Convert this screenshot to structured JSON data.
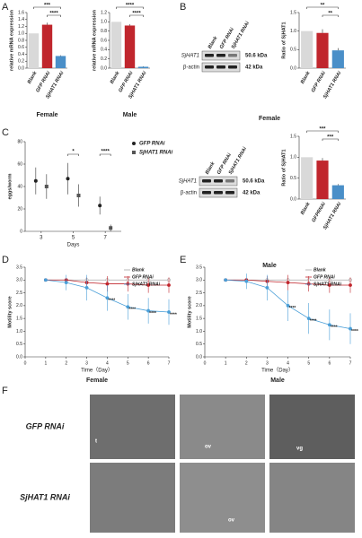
{
  "panel_labels": [
    "A",
    "B",
    "C",
    "D",
    "E",
    "F"
  ],
  "chart_data": [
    {
      "type": "bar",
      "categories": [
        "Blank",
        "GFP RNAi",
        "SjHAT1 RNAi"
      ],
      "values": [
        1.0,
        1.25,
        0.35
      ],
      "colors": [
        "#d9d9d9",
        "#c0262d",
        "#4a8fc8"
      ],
      "errors": [
        0,
        0.06,
        0.02
      ],
      "ylim": [
        0,
        1.6
      ],
      "yticks": [
        {
          "value": 0,
          "label": "0.0"
        },
        {
          "value": 0.2,
          "label": "0.2"
        },
        {
          "value": 0.4,
          "label": "0.4"
        },
        {
          "value": 0.6,
          "label": "0.6"
        },
        {
          "value": 0.8,
          "label": "0.8"
        },
        {
          "value": 1,
          "label": "1.0"
        },
        {
          "value": 1.2,
          "label": "1.2"
        },
        {
          "value": 1.4,
          "label": "1.4"
        },
        {
          "value": 1.6,
          "label": "1.6"
        }
      ],
      "ylabel": "relative mRNA expression",
      "xlabel": "Female",
      "annotations": [
        "***",
        "****"
      ]
    },
    {
      "type": "bar",
      "categories": [
        "Blank",
        "GFP RNAi",
        "SjHAT1 RNAi"
      ],
      "values": [
        1.0,
        0.92,
        0.03
      ],
      "colors": [
        "#d9d9d9",
        "#c0262d",
        "#4a8fc8"
      ],
      "errors": [
        0,
        0.03,
        0.01
      ],
      "ylim": [
        0,
        1.2
      ],
      "yticks": [
        {
          "value": 0,
          "label": "0.0"
        },
        {
          "value": 0.2,
          "label": "0.2"
        },
        {
          "value": 0.4,
          "label": "0.4"
        },
        {
          "value": 0.6,
          "label": "0.6"
        },
        {
          "value": 0.8,
          "label": "0.8"
        },
        {
          "value": 1,
          "label": "1.0"
        },
        {
          "value": 1.2,
          "label": "1.2"
        }
      ],
      "ylabel": "relative mRNA expression",
      "xlabel": "Male",
      "annotations": [
        "****",
        "****"
      ]
    },
    {
      "type": "bar",
      "categories": [
        "Blank",
        "GFP RNAi",
        "SjHAT1 RNAi"
      ],
      "values": [
        1.0,
        0.95,
        0.48
      ],
      "colors": [
        "#d9d9d9",
        "#c0262d",
        "#4a8fc8"
      ],
      "errors": [
        0,
        0.1,
        0.06
      ],
      "ylim": [
        0,
        1.5
      ],
      "yticks": [
        {
          "value": 0,
          "label": "0.0"
        },
        {
          "value": 0.5,
          "label": "0.5"
        },
        {
          "value": 1,
          "label": "1.0"
        },
        {
          "value": 1.5,
          "label": "1.5"
        }
      ],
      "ylabel": "Ratio of SjHAT1",
      "annotations": [
        "**",
        "**"
      ]
    },
    {
      "type": "scatter",
      "x": [
        3,
        5,
        7
      ],
      "xlim": [
        2,
        8
      ],
      "xticks": [
        3,
        5,
        7
      ],
      "ylim": [
        0,
        80
      ],
      "yticks": [
        0,
        20,
        40,
        60,
        80
      ],
      "series": [
        {
          "name": "GFP RNAi",
          "color": "#222",
          "values": [
            45,
            47,
            23
          ],
          "errors": [
            12,
            14,
            8
          ]
        },
        {
          "name": "SjHAT1 RNAi",
          "color": "#555",
          "values": [
            40,
            32,
            3
          ],
          "errors": [
            11,
            10,
            3
          ]
        }
      ],
      "xlabel": "Days",
      "ylabel": "eggs/worm",
      "annotations": [
        {
          "x": 5,
          "text": "*"
        },
        {
          "x": 7,
          "text": "****"
        }
      ]
    },
    {
      "type": "bar",
      "categories": [
        "Blank",
        "GFPRNAi",
        "SjHAT1 RNAi"
      ],
      "values": [
        1.0,
        0.92,
        0.33
      ],
      "colors": [
        "#d9d9d9",
        "#c0262d",
        "#4a8fc8"
      ],
      "errors": [
        0,
        0.06,
        0.03
      ],
      "ylim": [
        0,
        1.5
      ],
      "yticks": [
        {
          "value": 0,
          "label": "0.0"
        },
        {
          "value": 0.5,
          "label": "0.5"
        },
        {
          "value": 1,
          "label": "1.0"
        },
        {
          "value": 1.5,
          "label": "1.5"
        }
      ],
      "ylabel": "Ratio of SjHAT1",
      "annotations": [
        "***",
        "***"
      ]
    },
    {
      "type": "line",
      "x": [
        1,
        2,
        3,
        4,
        5,
        6,
        7
      ],
      "xlim": [
        0,
        7
      ],
      "xticks": [
        0,
        1,
        2,
        3,
        4,
        5,
        6,
        7
      ],
      "ylim": [
        0,
        3.5
      ],
      "yticks": [
        {
          "value": 0,
          "label": "0.0"
        },
        {
          "value": 0.5,
          "label": "0.5"
        },
        {
          "value": 1,
          "label": "1.0"
        },
        {
          "value": 1.5,
          "label": "1.5"
        },
        {
          "value": 2,
          "label": "2.0"
        },
        {
          "value": 2.5,
          "label": "2.5"
        },
        {
          "value": 3,
          "label": "3.0"
        },
        {
          "value": 3.5,
          "label": "3.5"
        }
      ],
      "series": [
        {
          "name": "Blank",
          "color": "#a6a6a6",
          "values": [
            3,
            3,
            3,
            3,
            3,
            3,
            3
          ],
          "errors": [
            0,
            0,
            0,
            0,
            0,
            0,
            0
          ]
        },
        {
          "name": "GFP RNAi",
          "color": "#c0262d",
          "values": [
            3,
            3,
            2.9,
            2.85,
            2.85,
            2.8,
            2.8
          ],
          "errors": [
            0,
            0.1,
            0.2,
            0.3,
            0.3,
            0.3,
            0.3
          ]
        },
        {
          "name": "SjHAT1 RNAi",
          "color": "#4a9fd8",
          "values": [
            3,
            2.9,
            2.7,
            2.3,
            1.95,
            1.8,
            1.75
          ],
          "errors": [
            0,
            0.3,
            0.5,
            0.5,
            0.5,
            0.5,
            0.5
          ]
        }
      ],
      "xlabel": "Time（Day）",
      "ylabel": "Motility score",
      "caption": "Female",
      "annotations": [
        {
          "x": 4,
          "text": "****"
        },
        {
          "x": 5,
          "text": "****"
        },
        {
          "x": 6,
          "text": "****"
        },
        {
          "x": 7,
          "text": "****"
        }
      ]
    },
    {
      "type": "line",
      "x": [
        1,
        2,
        3,
        4,
        5,
        6,
        7
      ],
      "xlim": [
        0,
        7
      ],
      "xticks": [
        0,
        1,
        2,
        3,
        4,
        5,
        6,
        7
      ],
      "ylim": [
        0,
        3.5
      ],
      "yticks": [
        {
          "value": 0,
          "label": "0.0"
        },
        {
          "value": 0.5,
          "label": "0.5"
        },
        {
          "value": 1,
          "label": "1.0"
        },
        {
          "value": 1.5,
          "label": "1.5"
        },
        {
          "value": 2,
          "label": "2.0"
        },
        {
          "value": 2.5,
          "label": "2.5"
        },
        {
          "value": 3,
          "label": "3.0"
        },
        {
          "value": 3.5,
          "label": "3.5"
        }
      ],
      "series": [
        {
          "name": "Blank",
          "color": "#a6a6a6",
          "values": [
            3,
            3,
            3,
            3,
            3,
            3,
            3
          ],
          "errors": [
            0,
            0,
            0,
            0,
            0,
            0,
            0
          ]
        },
        {
          "name": "GFP RNAi",
          "color": "#c0262d",
          "values": [
            3,
            3,
            2.95,
            2.9,
            2.85,
            2.8,
            2.8
          ],
          "errors": [
            0,
            0.1,
            0.2,
            0.3,
            0.3,
            0.3,
            0.3
          ]
        },
        {
          "name": "SjHAT1 RNAi",
          "color": "#4a9fd8",
          "values": [
            3,
            2.95,
            2.7,
            2.0,
            1.5,
            1.25,
            1.1
          ],
          "errors": [
            0,
            0.3,
            0.5,
            0.6,
            0.6,
            0.6,
            0.6
          ]
        }
      ],
      "xlabel": "Time（Day）",
      "ylabel": "Motility score",
      "caption": "Male",
      "annotations": [
        {
          "x": 4,
          "text": "****"
        },
        {
          "x": 5,
          "text": "****"
        },
        {
          "x": 6,
          "text": "****"
        },
        {
          "x": 7,
          "text": "****"
        }
      ]
    }
  ],
  "blots": [
    {
      "lanes": [
        "Blank",
        "GFP RNAi",
        "SjHAT1 RNAi"
      ],
      "rows": [
        "SjHAT1",
        "β-actin"
      ],
      "sizes": [
        "50.6 kDa",
        "42 kDa"
      ],
      "caption": "Female"
    },
    {
      "lanes": [
        "Blank",
        "GFP RNAi",
        "SjHAT1 RNAi"
      ],
      "rows": [
        "SjHAT1",
        "β-actin"
      ],
      "sizes": [
        "50.6 kDa",
        "42 kDa"
      ],
      "caption": "Male"
    }
  ],
  "micrographs": {
    "rows": [
      "GFP RNAi",
      "SjHAT1 RNAi"
    ],
    "marks": [
      "t",
      "ov",
      "vg",
      "ov"
    ]
  }
}
